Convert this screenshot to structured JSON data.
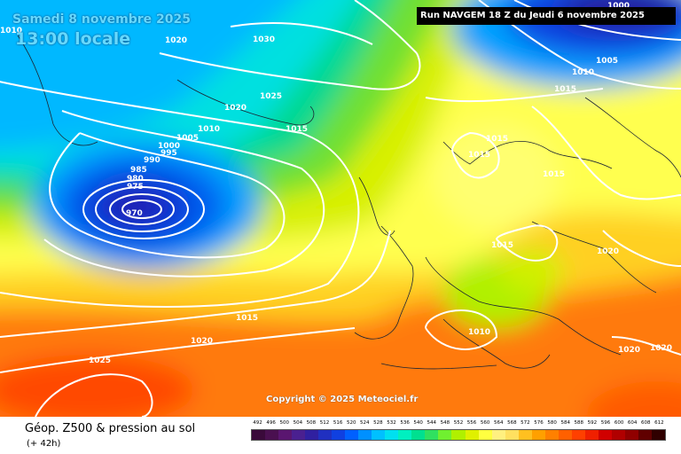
{
  "date_label": "Samedi 8 novembre 2025",
  "time_label": "13:00 locale",
  "run_label": "Run NAVGEM 18 Z du Jeudi 6 novembre 2025",
  "copyright": "Copyright © 2025 Meteociel.fr",
  "product_title": "Géop. Z500 & pression au sol",
  "lead_time": "(+ 42h)",
  "isobar_labels": [
    "1010",
    "1020",
    "1030",
    "1025",
    "1020",
    "1010",
    "1015",
    "1005",
    "1000",
    "995",
    "990",
    "985",
    "980",
    "975",
    "970",
    "1000",
    "1005",
    "1010",
    "1015",
    "1015",
    "1015",
    "1015",
    "1015",
    "1020",
    "1010",
    "1020",
    "1020",
    "1015",
    "1020",
    "1025"
  ],
  "legend": {
    "values": [
      "492",
      "496",
      "500",
      "504",
      "508",
      "512",
      "516",
      "520",
      "524",
      "528",
      "532",
      "536",
      "540",
      "544",
      "548",
      "552",
      "556",
      "560",
      "564",
      "568",
      "572",
      "576",
      "580",
      "584",
      "588",
      "592",
      "596",
      "600",
      "604",
      "608",
      "612"
    ],
    "colors": [
      "#3a0a3a",
      "#4a1050",
      "#5a1670",
      "#4a2090",
      "#3020a0",
      "#2030c0",
      "#1040e0",
      "#0060ff",
      "#0090ff",
      "#00c0ff",
      "#00e0f0",
      "#00f0c0",
      "#00e090",
      "#30e060",
      "#70f030",
      "#b0f000",
      "#e0f000",
      "#ffff40",
      "#fff080",
      "#ffe060",
      "#ffc020",
      "#ffa000",
      "#ff8000",
      "#ff6000",
      "#ff4000",
      "#f02000",
      "#d00000",
      "#b00000",
      "#900000",
      "#600000",
      "#300000"
    ]
  }
}
